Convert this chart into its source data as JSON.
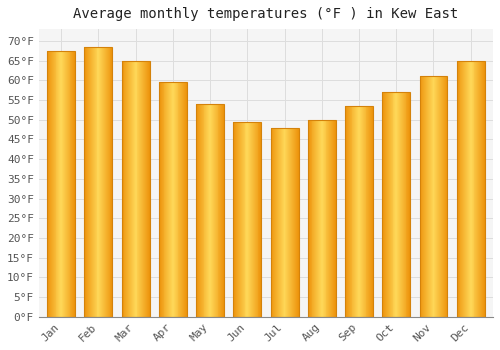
{
  "title": "Average monthly temperatures (°F ) in Kew East",
  "months": [
    "Jan",
    "Feb",
    "Mar",
    "Apr",
    "May",
    "Jun",
    "Jul",
    "Aug",
    "Sep",
    "Oct",
    "Nov",
    "Dec"
  ],
  "values": [
    67.5,
    68.5,
    65.0,
    59.5,
    54.0,
    49.5,
    48.0,
    50.0,
    53.5,
    57.0,
    61.0,
    65.0
  ],
  "bar_color_center": "#FFD060",
  "bar_color_edge": "#E8900A",
  "background_color": "#FFFFFF",
  "plot_bg_color": "#F5F5F5",
  "grid_color": "#DDDDDD",
  "ylim": [
    0,
    73
  ],
  "yticks": [
    0,
    5,
    10,
    15,
    20,
    25,
    30,
    35,
    40,
    45,
    50,
    55,
    60,
    65,
    70
  ],
  "title_fontsize": 10,
  "tick_fontsize": 8,
  "font_family": "monospace",
  "bar_width": 0.75
}
